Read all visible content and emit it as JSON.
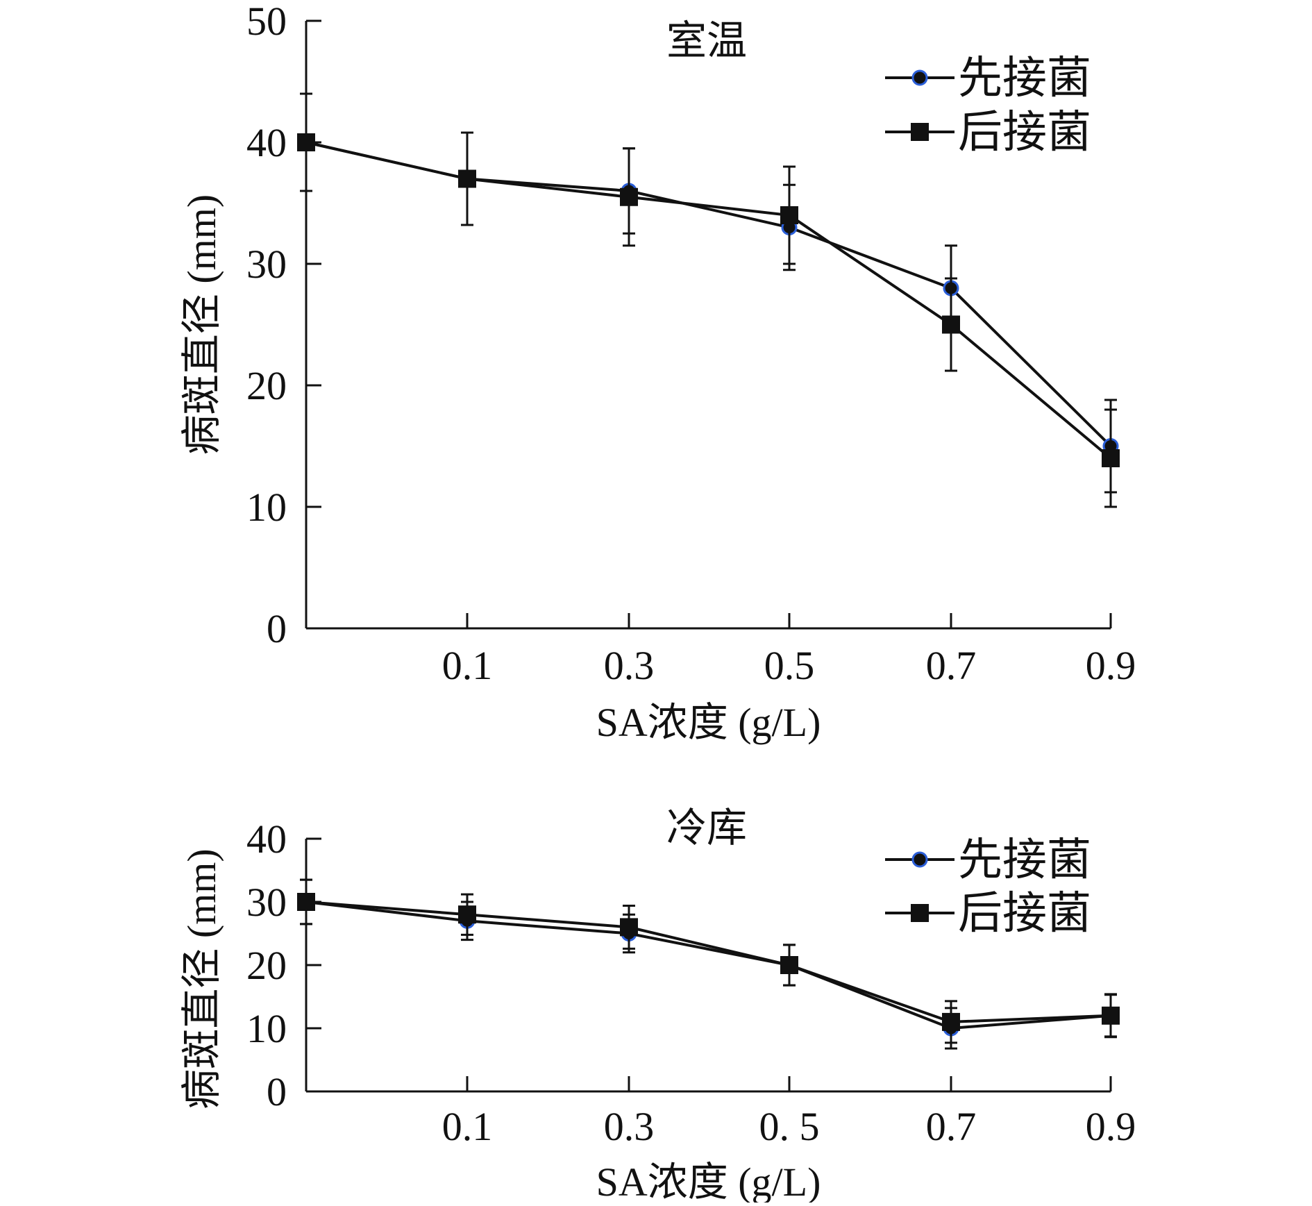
{
  "chart_data": [
    {
      "type": "line",
      "title": "室温",
      "xlabel": "SA浓度 (g/L)",
      "ylabel": "病斑直径 (mm)",
      "categories": [
        "",
        "0.1",
        "0.3",
        "0.5",
        "0.7",
        "0.9"
      ],
      "x_tick_labels": [
        "0.1",
        "0.3",
        "0.5",
        "0.7",
        "0.9"
      ],
      "y_ticks": [
        "0",
        "10",
        "20",
        "30",
        "40",
        "50"
      ],
      "ylim": [
        0,
        50
      ],
      "grid": false,
      "legend_position": "top-right",
      "series": [
        {
          "name": "先接菌",
          "marker": "circle",
          "color": "#111111",
          "marker_edge": "#2b5fd9",
          "values": [
            40,
            37,
            36,
            33,
            28,
            15
          ],
          "errors": [
            4,
            3.8,
            3.5,
            3.5,
            3.5,
            3.8
          ]
        },
        {
          "name": "后接菌",
          "marker": "square",
          "color": "#111111",
          "values": [
            40,
            37,
            35.5,
            34,
            25,
            14
          ],
          "errors": [
            4,
            3.8,
            4,
            4,
            3.8,
            4
          ]
        }
      ]
    },
    {
      "type": "line",
      "title": "冷库",
      "xlabel": "SA浓度 (g/L)",
      "ylabel": "病斑直径 (mm)",
      "categories": [
        "",
        "0.1",
        "0.3",
        "0. 5",
        "0.7",
        "0.9"
      ],
      "x_tick_labels": [
        "0.1",
        "0.3",
        "0. 5",
        "0.7",
        "0.9"
      ],
      "y_ticks": [
        "0",
        "10",
        "20",
        "30",
        "40"
      ],
      "ylim": [
        0,
        40
      ],
      "grid": false,
      "legend_position": "top-right",
      "series": [
        {
          "name": "先接菌",
          "marker": "circle",
          "color": "#111111",
          "marker_edge": "#2b5fd9",
          "values": [
            30,
            27,
            25,
            20,
            10,
            12
          ],
          "errors": [
            3.5,
            3,
            3,
            3.2,
            3.2,
            3.3
          ]
        },
        {
          "name": "后接菌",
          "marker": "square",
          "color": "#111111",
          "values": [
            30,
            28,
            26,
            20,
            11,
            12
          ],
          "errors": [
            3.5,
            3.2,
            3.4,
            3.2,
            3.3,
            3.4
          ]
        }
      ]
    }
  ]
}
